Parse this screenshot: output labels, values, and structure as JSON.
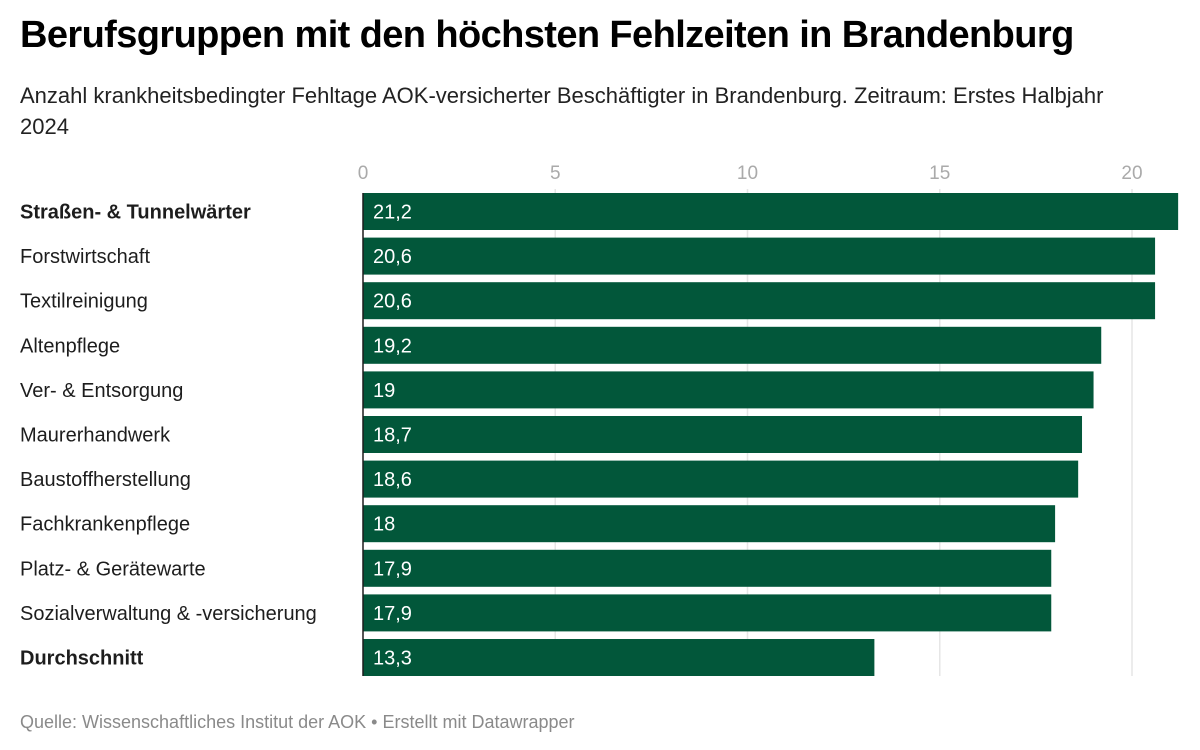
{
  "header": {
    "title": "Berufsgruppen mit den höchsten Fehlzeiten in Brandenburg",
    "subtitle": "Anzahl krankheitsbedingter Fehltage AOK-versicherter Beschäftigter in Brandenburg. Zeitraum: Erstes Halbjahr 2024"
  },
  "footer": {
    "source": "Quelle: Wissenschaftliches Institut der AOK • Erstellt mit Datawrapper"
  },
  "colors": {
    "bar": "#02573a",
    "bar_label": "#ffffff",
    "gridline": "#e6e6e6",
    "axis_line": "#1d1d1d",
    "tick_label": "#aaaaaa"
  },
  "chart_data": {
    "type": "bar",
    "orientation": "horizontal",
    "title": "Berufsgruppen mit den höchsten Fehlzeiten in Brandenburg",
    "subtitle": "Anzahl krankheitsbedingter Fehltage AOK-versicherter Beschäftigter in Brandenburg. Zeitraum: Erstes Halbjahr 2024",
    "xlabel": "",
    "ylabel": "",
    "xlim": [
      0,
      21.2
    ],
    "x_ticks": [
      0,
      5,
      10,
      15,
      20
    ],
    "x_tick_labels": [
      "0",
      "5",
      "10",
      "15",
      "20"
    ],
    "x_axis_position": "top",
    "grid": true,
    "categories": [
      "Straßen- & Tunnelwärter",
      "Forstwirtschaft",
      "Textilreinigung",
      "Altenpflege",
      "Ver- & Entsorgung",
      "Maurerhandwerk",
      "Baustoffherstellung",
      "Fachkrankenpflege",
      "Platz- & Gerätewarte",
      "Sozialverwaltung & -versicherung",
      "Durchschnitt"
    ],
    "bold_categories": [
      "Straßen- & Tunnelwärter",
      "Durchschnitt"
    ],
    "values": [
      21.2,
      20.6,
      20.6,
      19.2,
      19,
      18.7,
      18.6,
      18,
      17.9,
      17.9,
      13.3
    ],
    "value_labels": [
      "21,2",
      "20,6",
      "20,6",
      "19,2",
      "19",
      "18,7",
      "18,6",
      "18",
      "17,9",
      "17,9",
      "13,3"
    ],
    "source": "Quelle: Wissenschaftliches Institut der AOK",
    "credit": "Erstellt mit Datawrapper"
  }
}
